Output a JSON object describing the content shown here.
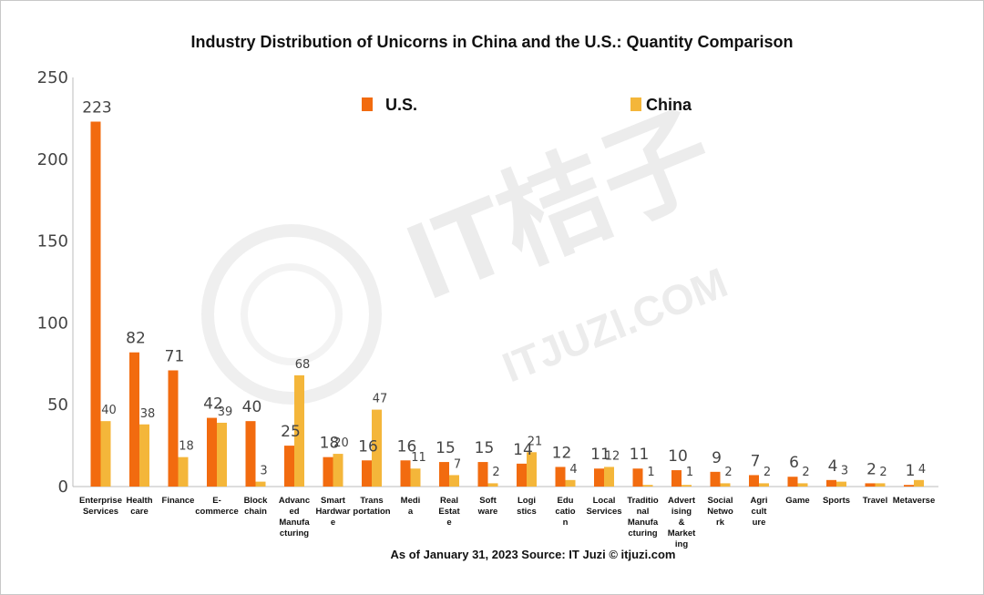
{
  "title": "Industry Distribution of Unicorns in China and the U.S.: Quantity Comparison",
  "footnote": "As of January 31, 2023   Source: IT Juzi © itjuzi.com",
  "watermark": {
    "brand": "IT桔子",
    "url": "ITJUZI.COM"
  },
  "colors": {
    "us": "#f26b0f",
    "china": "#f4b63a",
    "axis": "#bbbbbb"
  },
  "chart_data": {
    "type": "bar",
    "title": "Industry Distribution of Unicorns in China and the U.S.: Quantity Comparison",
    "ylim": [
      0,
      250
    ],
    "yticks": [
      0,
      50,
      100,
      150,
      200,
      250
    ],
    "grid": false,
    "legend_position": "top",
    "categories": [
      [
        "Enterprise",
        "Services"
      ],
      [
        "Health",
        "care"
      ],
      [
        "Finance"
      ],
      [
        "E-",
        "commerce"
      ],
      [
        "Block",
        "chain"
      ],
      [
        "Advanc",
        "ed",
        "Manufa",
        "cturing"
      ],
      [
        "Smart",
        "Hardwar",
        "e"
      ],
      [
        "Trans",
        "portation"
      ],
      [
        "Medi",
        "a"
      ],
      [
        "Real",
        "Estat",
        "e"
      ],
      [
        "Soft",
        "ware"
      ],
      [
        "Logi",
        "stics"
      ],
      [
        "Edu",
        "catio",
        "n"
      ],
      [
        "Local",
        "Services"
      ],
      [
        "Traditio",
        "nal",
        "Manufa",
        "cturing"
      ],
      [
        "Advert",
        "ising",
        "&",
        "Market",
        "ing"
      ],
      [
        "Social",
        "Netwo",
        "rk"
      ],
      [
        "Agri",
        "cult",
        "ure"
      ],
      [
        "Game"
      ],
      [
        "Sports"
      ],
      [
        "Travel"
      ],
      [
        "Metaverse"
      ]
    ],
    "series": [
      {
        "name": "U.S.",
        "values": [
          223,
          82,
          71,
          42,
          40,
          25,
          18,
          16,
          16,
          15,
          15,
          14,
          12,
          11,
          11,
          10,
          9,
          7,
          6,
          4,
          2,
          1
        ]
      },
      {
        "name": "China",
        "values": [
          40,
          38,
          18,
          39,
          3,
          68,
          20,
          47,
          11,
          7,
          2,
          21,
          4,
          12,
          1,
          1,
          2,
          2,
          2,
          3,
          2,
          4
        ]
      }
    ]
  }
}
